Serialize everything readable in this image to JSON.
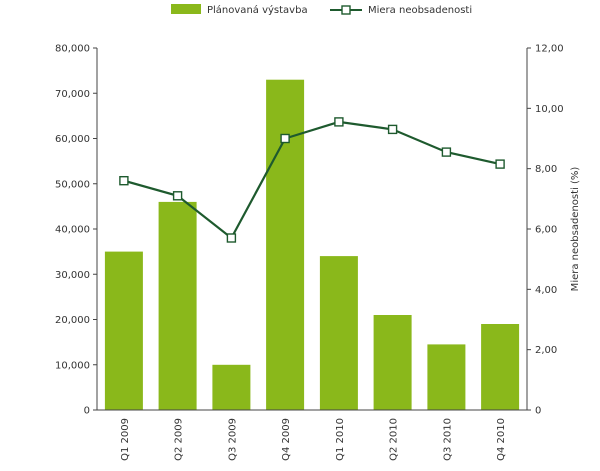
{
  "chart_data": {
    "type": "bar+line",
    "categories": [
      "Q1 2009",
      "Q2 2009",
      "Q3 2009",
      "Q4 2009",
      "Q1 2010",
      "Q2 2010",
      "Q3 2010",
      "Q4 2010"
    ],
    "series": [
      {
        "name": "Plánovaná výstavba",
        "type": "bar",
        "axis": "left",
        "color": "#8ab81b",
        "values": [
          35000,
          46000,
          10000,
          73000,
          34000,
          21000,
          14500,
          19000
        ]
      },
      {
        "name": "Miera neobsadenosti",
        "type": "line",
        "axis": "right",
        "color": "#1e5a2e",
        "marker": "square-open",
        "values": [
          7.6,
          7.1,
          5.7,
          9.0,
          9.55,
          9.3,
          8.55,
          8.15
        ]
      }
    ],
    "y_left": {
      "label": "",
      "ylim": [
        0,
        80000
      ],
      "ticks": [
        "0",
        "10,000",
        "20,000",
        "30,000",
        "40,000",
        "50,000",
        "60,000",
        "70,000",
        "80,000"
      ]
    },
    "y_right": {
      "label": "Miera neobsadenosti (%)",
      "ylim": [
        0,
        12
      ],
      "ticks": [
        "0",
        "2,00",
        "4,00",
        "6,00",
        "8,00",
        "10,00",
        "12,00"
      ]
    },
    "x_tick_rotation": "vertical",
    "grid": false,
    "legend": "top-center"
  }
}
